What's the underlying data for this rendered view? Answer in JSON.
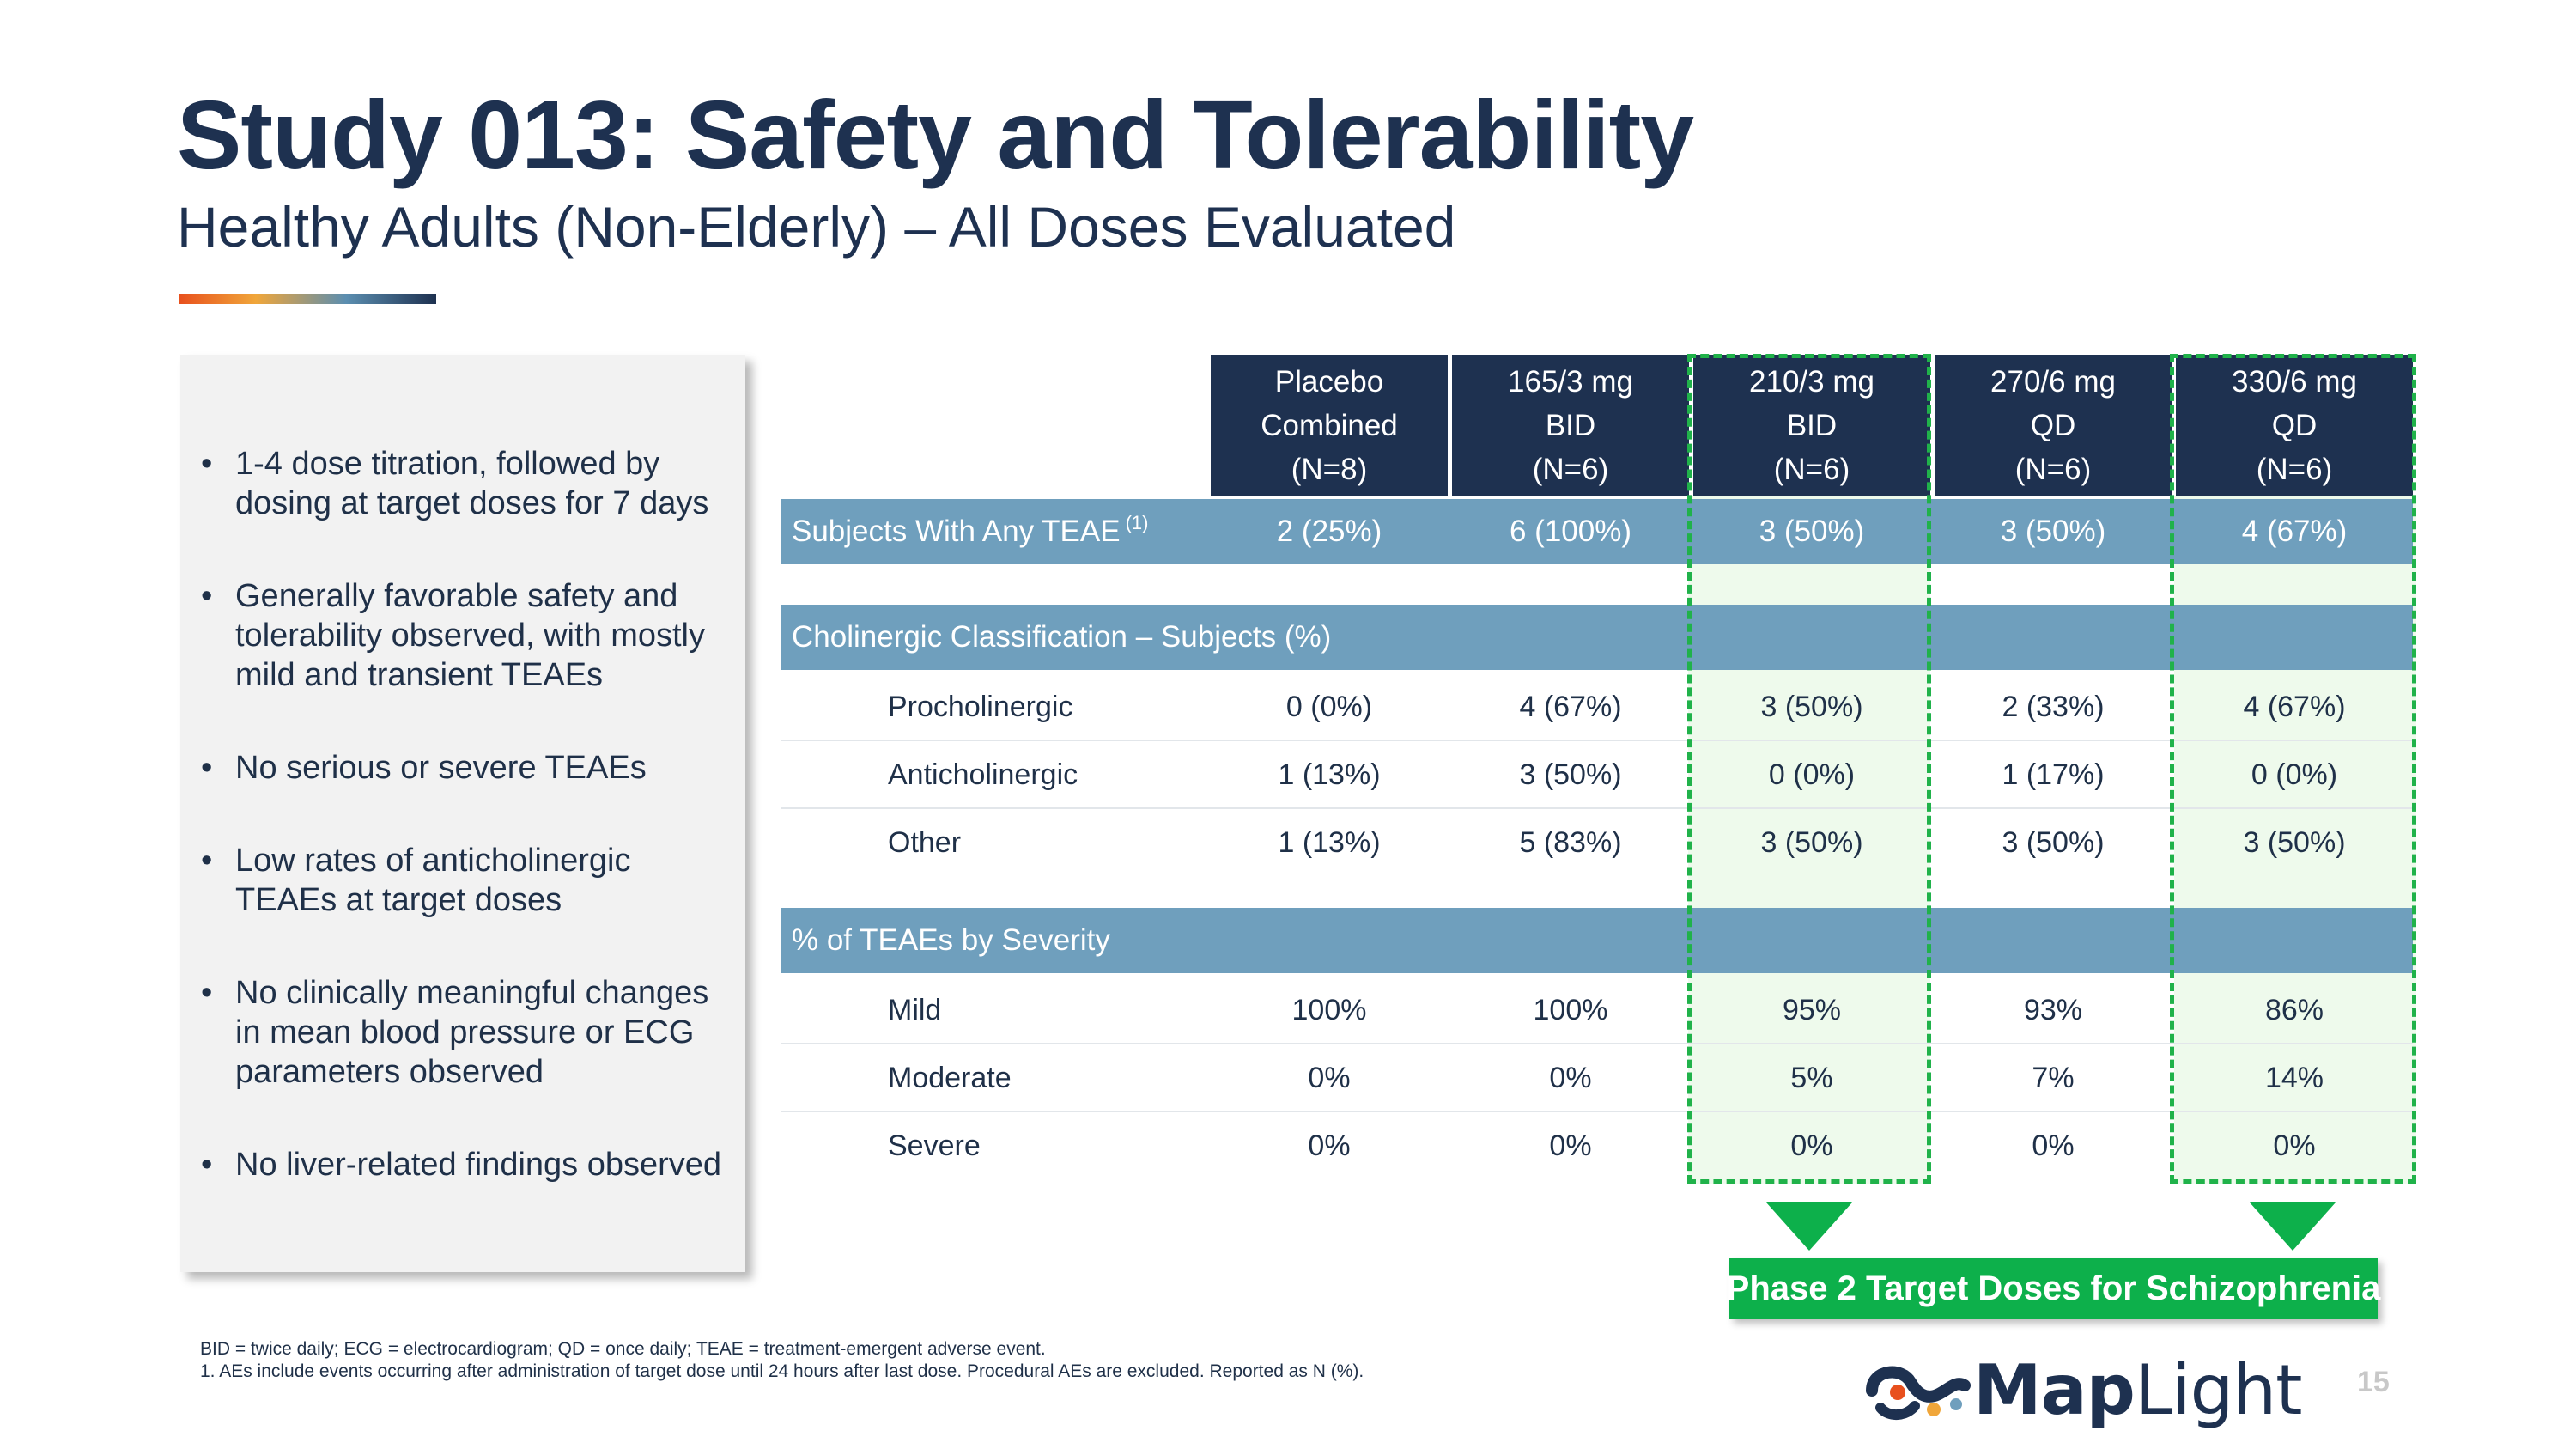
{
  "title": "Study 013: Safety and Tolerability",
  "subtitle": "Healthy Adults (Non-Elderly) – All Doses Evaluated",
  "bullets": [
    "1-4 dose titration, followed by dosing at target doses for 7 days",
    "Generally favorable safety and tolerability observed, with mostly mild and transient TEAEs",
    "No serious or severe TEAEs",
    "Low rates of anticholinergic TEAEs at target doses",
    "No clinically meaningful changes in mean blood pressure or ECG parameters observed",
    "No liver-related findings observed"
  ],
  "table": {
    "columns": [
      {
        "line1": "Placebo",
        "line2": "Combined",
        "line3": "(N=8)"
      },
      {
        "line1": "165/3 mg",
        "line2": "BID",
        "line3": "(N=6)"
      },
      {
        "line1": "210/3 mg",
        "line2": "BID",
        "line3": "(N=6)"
      },
      {
        "line1": "270/6 mg",
        "line2": "QD",
        "line3": "(N=6)"
      },
      {
        "line1": "330/6 mg",
        "line2": "QD",
        "line3": "(N=6)"
      }
    ],
    "any_teae": {
      "label": "Subjects With Any TEAE",
      "footnote_ref": "(1)",
      "values": [
        "2 (25%)",
        "6 (100%)",
        "3 (50%)",
        "3 (50%)",
        "4 (67%)"
      ]
    },
    "cholinergic": {
      "header": "Cholinergic Classification – Subjects (%)",
      "rows": [
        {
          "label": "Procholinergic",
          "values": [
            "0 (0%)",
            "4 (67%)",
            "3 (50%)",
            "2 (33%)",
            "4 (67%)"
          ]
        },
        {
          "label": "Anticholinergic",
          "values": [
            "1 (13%)",
            "3 (50%)",
            "0 (0%)",
            "1 (17%)",
            "0 (0%)"
          ]
        },
        {
          "label": "Other",
          "values": [
            "1 (13%)",
            "5 (83%)",
            "3 (50%)",
            "3 (50%)",
            "3 (50%)"
          ]
        }
      ]
    },
    "severity": {
      "header": "% of TEAEs by Severity",
      "rows": [
        {
          "label": "Mild",
          "values": [
            "100%",
            "100%",
            "95%",
            "93%",
            "86%"
          ]
        },
        {
          "label": "Moderate",
          "values": [
            "0%",
            "0%",
            "5%",
            "7%",
            "14%"
          ]
        },
        {
          "label": "Severe",
          "values": [
            "0%",
            "0%",
            "0%",
            "0%",
            "0%"
          ]
        }
      ]
    }
  },
  "callout": "Phase 2 Target Doses for Schizophrenia",
  "footnotes": [
    "BID = twice daily; ECG = electrocardiogram; QD = once daily; TEAE = treatment-emergent adverse event.",
    "1.  AEs include events occurring after administration of target dose until 24 hours after last dose. Procedural AEs are excluded. Reported as N (%)."
  ],
  "logo": {
    "bold": "Map",
    "light": "Light"
  },
  "page_number": "15",
  "colors": {
    "navy": "#1e3150",
    "band": "#6f9fbd",
    "green": "#0db04b",
    "highlight": "#eefaec"
  }
}
